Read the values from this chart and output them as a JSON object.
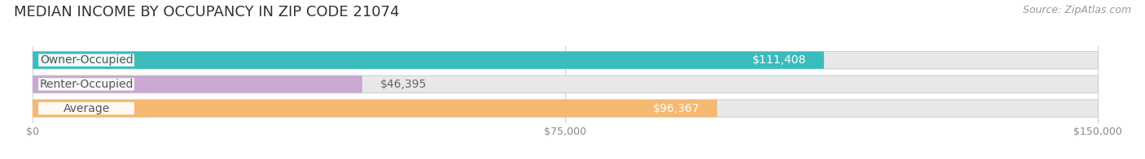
{
  "title": "MEDIAN INCOME BY OCCUPANCY IN ZIP CODE 21074",
  "source": "Source: ZipAtlas.com",
  "categories": [
    "Owner-Occupied",
    "Renter-Occupied",
    "Average"
  ],
  "values": [
    111408,
    46395,
    96367
  ],
  "labels": [
    "$111,408",
    "$46,395",
    "$96,367"
  ],
  "label_inside": [
    true,
    false,
    true
  ],
  "bar_colors": [
    "#3bbcbc",
    "#c9a8d4",
    "#f5b870"
  ],
  "bar_bg_color": "#e8e8ea",
  "xlim": [
    0,
    150000
  ],
  "xticks": [
    0,
    75000,
    150000
  ],
  "xticklabels": [
    "$0",
    "$75,000",
    "$150,000"
  ],
  "title_fontsize": 13,
  "source_fontsize": 9,
  "label_fontsize": 10,
  "cat_fontsize": 10,
  "bar_height": 0.72,
  "fig_bg": "#ffffff",
  "grid_color": "#d0d0d0",
  "label_inside_color": "#ffffff",
  "label_outside_color": "#666666",
  "cat_label_color": "#555555",
  "tick_color": "#888888"
}
